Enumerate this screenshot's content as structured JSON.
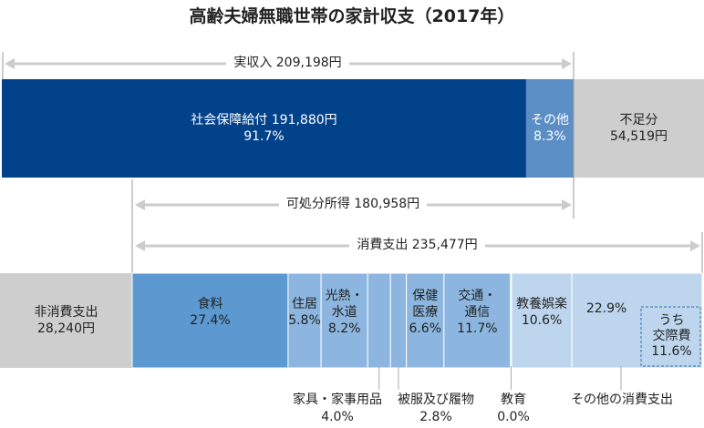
{
  "title": "高齢夫婦無職世帯の家計収支（2017年）",
  "colors": {
    "income_main": "#02428a",
    "income_other": "#5b8ec5",
    "shortfall": "#cecece",
    "food": "#5b99d0",
    "mid": "#8cb6df",
    "light": "#bdd6ee",
    "non_consumption": "#cecece",
    "arrow": "#cccccc",
    "leader": "#aaaaaa"
  },
  "labels": {
    "income": "実収入 209,198円",
    "disposable": "可処分所得 180,958円",
    "consumption": "消費支出 235,477円"
  },
  "income": {
    "social": {
      "label": "社会保障給付 191,880円",
      "pct": "91.7%",
      "share": 91.7
    },
    "other": {
      "label": "その他",
      "pct": "8.3%",
      "share": 8.3
    },
    "shortfall": {
      "label": "不足分",
      "value": "54,519円"
    }
  },
  "non_consumption": {
    "label": "非消費支出",
    "value": "28,240円"
  },
  "chart_data": {
    "type": "bar",
    "title": "高齢夫婦無職世帯の家計収支（2017年）",
    "income": {
      "total": 209198,
      "disposable_income": 180958,
      "components": [
        {
          "name": "社会保障給付",
          "value": 191880,
          "share": 91.7
        },
        {
          "name": "その他",
          "share": 8.3
        }
      ],
      "shortfall": 54519
    },
    "expenditure": {
      "consumption_total": 235477,
      "non_consumption": 28240,
      "consumption_items": [
        {
          "name": "食料",
          "share": 27.4
        },
        {
          "name": "住居",
          "share": 5.8
        },
        {
          "name": "光熱・水道",
          "share": 8.2
        },
        {
          "name": "家具・家事用品",
          "share": 4.0
        },
        {
          "name": "被服及び履物",
          "share": 2.8
        },
        {
          "name": "保健医療",
          "share": 6.6
        },
        {
          "name": "交通・通信",
          "share": 11.7
        },
        {
          "name": "教育",
          "share": 0.0
        },
        {
          "name": "教養娯楽",
          "share": 10.6
        },
        {
          "name": "その他の消費支出",
          "share": 22.9
        }
      ],
      "sub_item": {
        "name": "うち交際費",
        "share": 11.6
      }
    }
  },
  "segments": [
    {
      "key": "food",
      "lines": [
        "食料"
      ],
      "pct": "27.4%",
      "color": "food",
      "text": "dark",
      "inside": true
    },
    {
      "key": "housing",
      "lines": [
        "住居"
      ],
      "pct": "5.8%",
      "color": "mid",
      "text": "dark",
      "inside": true
    },
    {
      "key": "utilities",
      "lines": [
        "光熱・",
        "水道"
      ],
      "pct": "8.2%",
      "color": "mid",
      "text": "dark",
      "inside": true
    },
    {
      "key": "furniture",
      "lines": [
        "家具・家事用品"
      ],
      "pct": "4.0%",
      "color": "mid",
      "text": "dark",
      "inside": false
    },
    {
      "key": "clothing",
      "lines": [
        "被服及び履物"
      ],
      "pct": "2.8%",
      "color": "mid",
      "text": "dark",
      "inside": false
    },
    {
      "key": "medical",
      "lines": [
        "保健",
        "医療"
      ],
      "pct": "6.6%",
      "color": "mid",
      "text": "dark",
      "inside": true
    },
    {
      "key": "transport",
      "lines": [
        "交通・",
        "通信"
      ],
      "pct": "11.7%",
      "color": "mid",
      "text": "dark",
      "inside": true
    },
    {
      "key": "education",
      "lines": [
        "教育"
      ],
      "pct": "0.0%",
      "color": "light",
      "text": "dark",
      "inside": false
    },
    {
      "key": "recreation",
      "lines": [
        "教養娯楽"
      ],
      "pct": "10.6%",
      "color": "light",
      "text": "dark",
      "inside": true
    },
    {
      "key": "other",
      "lines": [
        "その他の消費支出"
      ],
      "pct": "22.9%",
      "color": "light",
      "text": "dark",
      "inside": false
    }
  ],
  "sub_item": {
    "lines": [
      "うち",
      "交際費"
    ],
    "pct": "11.6%"
  }
}
